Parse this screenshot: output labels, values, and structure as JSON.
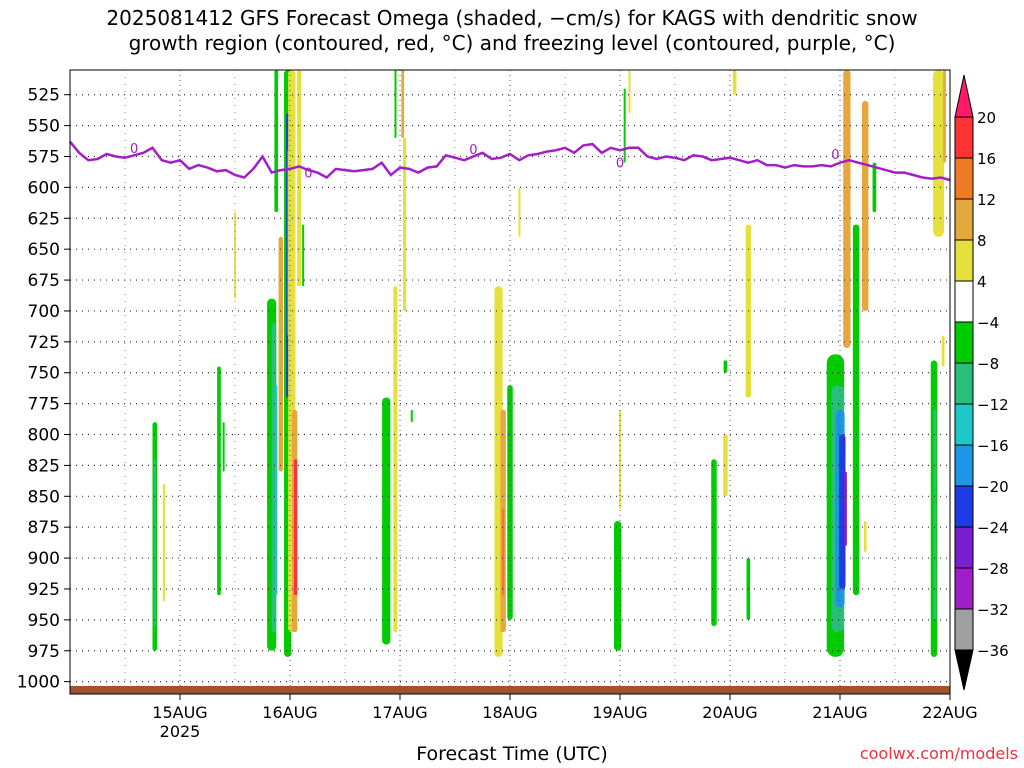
{
  "title_line1": "2025081412 GFS Forecast Omega (shaded, −cm/s) for KAGS with dendritic snow",
  "title_line2": "growth region (contoured, red, °C) and freezing level (contoured, purple, °C)",
  "x_axis_title": "Forecast Time (UTC)",
  "credit": "coolwx.com/models",
  "chart_data": {
    "type": "heatmap",
    "y_axis": {
      "label": "",
      "unit": "hPa",
      "range": [
        1010,
        505
      ],
      "ticks": [
        525,
        550,
        575,
        600,
        625,
        650,
        675,
        700,
        725,
        750,
        775,
        800,
        825,
        850,
        875,
        900,
        925,
        950,
        975,
        1000
      ]
    },
    "x_axis": {
      "range_hours": [
        -12,
        180
      ],
      "ticks": [
        {
          "hour": 12,
          "label": "15AUG",
          "sublabel": "2025"
        },
        {
          "hour": 36,
          "label": "16AUG",
          "sublabel": ""
        },
        {
          "hour": 60,
          "label": "17AUG",
          "sublabel": ""
        },
        {
          "hour": 84,
          "label": "18AUG",
          "sublabel": ""
        },
        {
          "hour": 108,
          "label": "19AUG",
          "sublabel": ""
        },
        {
          "hour": 132,
          "label": "20AUG",
          "sublabel": ""
        },
        {
          "hour": 156,
          "label": "21AUG",
          "sublabel": ""
        },
        {
          "hour": 180,
          "label": "22AUG",
          "sublabel": ""
        }
      ]
    },
    "colorbar": {
      "levels": [
        "20",
        "16",
        "12",
        "8",
        "4",
        "−4",
        "−8",
        "−12",
        "−16",
        "−20",
        "−24",
        "−28",
        "−32",
        "−36"
      ],
      "colors": [
        "#ff1a66",
        "#ff3333",
        "#f07a28",
        "#e6a83c",
        "#e6e03c",
        "#ffffff",
        "#00cc00",
        "#27bf7a",
        "#1ec8c8",
        "#1e96e6",
        "#1e3ce6",
        "#7a1ed2",
        "#a01ec8",
        "#a0a0a0",
        "#000000"
      ]
    },
    "freezing_level_0C": {
      "label": "0",
      "hours": [
        -12,
        -10,
        -8,
        -6,
        -4,
        -2,
        0,
        2,
        4,
        6,
        8,
        10,
        12,
        14,
        16,
        18,
        20,
        22,
        24,
        26,
        28,
        30,
        32,
        34,
        36,
        38,
        40,
        42,
        44,
        46,
        48,
        50,
        52,
        54,
        56,
        58,
        60,
        62,
        64,
        66,
        68,
        70,
        72,
        74,
        76,
        78,
        80,
        82,
        84,
        86,
        88,
        90,
        92,
        94,
        96,
        98,
        100,
        102,
        104,
        106,
        108,
        110,
        112,
        114,
        116,
        118,
        120,
        122,
        124,
        126,
        128,
        130,
        132,
        134,
        136,
        138,
        140,
        142,
        144,
        146,
        148,
        150,
        152,
        154,
        156,
        158,
        160,
        162,
        164,
        166,
        168,
        170,
        172,
        174,
        176,
        178,
        180
      ],
      "pressure": [
        563,
        572,
        578,
        577,
        573,
        575,
        576,
        574,
        572,
        568,
        578,
        580,
        578,
        585,
        582,
        584,
        587,
        586,
        590,
        592,
        585,
        575,
        588,
        586,
        585,
        583,
        586,
        588,
        592,
        585,
        586,
        587,
        586,
        585,
        580,
        590,
        584,
        585,
        588,
        584,
        583,
        574,
        576,
        578,
        575,
        572,
        577,
        576,
        573,
        578,
        574,
        573,
        571,
        570,
        568,
        572,
        566,
        565,
        572,
        568,
        570,
        568,
        568,
        575,
        577,
        575,
        576,
        578,
        574,
        575,
        578,
        577,
        576,
        578,
        580,
        578,
        582,
        582,
        584,
        582,
        583,
        583,
        582,
        583,
        580,
        578,
        580,
        582,
        584,
        586,
        588,
        588,
        590,
        592,
        593,
        592,
        594
      ]
    },
    "omega_features": [
      {
        "hour": 6.5,
        "p_top": 790,
        "p_bot": 975,
        "width_h": 1.0,
        "value": -7
      },
      {
        "hour": 6.5,
        "p_top": 820,
        "p_bot": 955,
        "width_h": 0.4,
        "value": -11
      },
      {
        "hour": 8.5,
        "p_top": 840,
        "p_bot": 935,
        "width_h": 0.5,
        "value": 4
      },
      {
        "hour": 20.5,
        "p_top": 745,
        "p_bot": 930,
        "width_h": 0.8,
        "value": -7
      },
      {
        "hour": 21.5,
        "p_top": 790,
        "p_bot": 830,
        "width_h": 0.4,
        "value": -8
      },
      {
        "hour": 24,
        "p_top": 620,
        "p_bot": 690,
        "width_h": 0.4,
        "value": 4
      },
      {
        "hour": 32,
        "p_top": 690,
        "p_bot": 975,
        "width_h": 2.0,
        "value": -7
      },
      {
        "hour": 32.5,
        "p_top": 710,
        "p_bot": 960,
        "width_h": 1.0,
        "value": -11
      },
      {
        "hour": 33,
        "p_top": 760,
        "p_bot": 930,
        "width_h": 0.5,
        "value": -16
      },
      {
        "hour": 33,
        "p_top": 505,
        "p_bot": 620,
        "width_h": 0.8,
        "value": -7
      },
      {
        "hour": 34,
        "p_top": 640,
        "p_bot": 830,
        "width_h": 1.0,
        "value": 8
      },
      {
        "hour": 35.5,
        "p_top": 505,
        "p_bot": 980,
        "width_h": 1.6,
        "value": -8
      },
      {
        "hour": 35.6,
        "p_top": 540,
        "p_bot": 770,
        "width_h": 0.9,
        "value": -22
      },
      {
        "hour": 35.7,
        "p_top": 570,
        "p_bot": 720,
        "width_h": 0.5,
        "value": -36
      },
      {
        "hour": 36.4,
        "p_top": 505,
        "p_bot": 960,
        "width_h": 1.6,
        "value": 6
      },
      {
        "hour": 37,
        "p_top": 780,
        "p_bot": 960,
        "width_h": 1.2,
        "value": 10
      },
      {
        "hour": 37.2,
        "p_top": 820,
        "p_bot": 930,
        "width_h": 0.7,
        "value": 18
      },
      {
        "hour": 38,
        "p_top": 505,
        "p_bot": 680,
        "width_h": 0.9,
        "value": 5
      },
      {
        "hour": 38.8,
        "p_top": 630,
        "p_bot": 680,
        "width_h": 0.3,
        "value": -7
      },
      {
        "hour": 57,
        "p_top": 770,
        "p_bot": 970,
        "width_h": 1.8,
        "value": -7
      },
      {
        "hour": 59,
        "p_top": 680,
        "p_bot": 960,
        "width_h": 0.9,
        "value": 4
      },
      {
        "hour": 59,
        "p_top": 505,
        "p_bot": 560,
        "width_h": 0.4,
        "value": -7
      },
      {
        "hour": 60.6,
        "p_top": 505,
        "p_bot": 560,
        "width_h": 0.6,
        "value": 10
      },
      {
        "hour": 61,
        "p_top": 560,
        "p_bot": 700,
        "width_h": 0.7,
        "value": 4
      },
      {
        "hour": 62.5,
        "p_top": 780,
        "p_bot": 790,
        "width_h": 0.3,
        "value": -7
      },
      {
        "hour": 81.5,
        "p_top": 680,
        "p_bot": 980,
        "width_h": 1.8,
        "value": 5
      },
      {
        "hour": 82.5,
        "p_top": 780,
        "p_bot": 960,
        "width_h": 1.2,
        "value": 8
      },
      {
        "hour": 82.5,
        "p_top": 860,
        "p_bot": 930,
        "width_h": 0.5,
        "value": 13
      },
      {
        "hour": 84,
        "p_top": 760,
        "p_bot": 950,
        "width_h": 1.2,
        "value": -7
      },
      {
        "hour": 86,
        "p_top": 600,
        "p_bot": 640,
        "width_h": 0.3,
        "value": 4
      },
      {
        "hour": 107.5,
        "p_top": 870,
        "p_bot": 975,
        "width_h": 1.6,
        "value": -7
      },
      {
        "hour": 108,
        "p_top": 780,
        "p_bot": 860,
        "width_h": 0.4,
        "value": 4
      },
      {
        "hour": 109,
        "p_top": 520,
        "p_bot": 580,
        "width_h": 0.4,
        "value": -7
      },
      {
        "hour": 110,
        "p_top": 505,
        "p_bot": 540,
        "width_h": 0.3,
        "value": 4
      },
      {
        "hour": 128.5,
        "p_top": 820,
        "p_bot": 955,
        "width_h": 1.2,
        "value": -7
      },
      {
        "hour": 131,
        "p_top": 800,
        "p_bot": 850,
        "width_h": 1.0,
        "value": 4
      },
      {
        "hour": 131,
        "p_top": 740,
        "p_bot": 750,
        "width_h": 0.8,
        "value": -7
      },
      {
        "hour": 133,
        "p_top": 505,
        "p_bot": 525,
        "width_h": 0.8,
        "value": 4
      },
      {
        "hour": 136,
        "p_top": 630,
        "p_bot": 770,
        "width_h": 1.2,
        "value": 4
      },
      {
        "hour": 136,
        "p_top": 900,
        "p_bot": 950,
        "width_h": 0.8,
        "value": -7
      },
      {
        "hour": 155,
        "p_top": 735,
        "p_bot": 980,
        "width_h": 3.8,
        "value": -7
      },
      {
        "hour": 155.5,
        "p_top": 760,
        "p_bot": 960,
        "width_h": 2.8,
        "value": -12
      },
      {
        "hour": 156,
        "p_top": 780,
        "p_bot": 940,
        "width_h": 2.0,
        "value": -17
      },
      {
        "hour": 156.5,
        "p_top": 800,
        "p_bot": 925,
        "width_h": 1.4,
        "value": -22
      },
      {
        "hour": 157.2,
        "p_top": 830,
        "p_bot": 890,
        "width_h": 0.6,
        "value": -26
      },
      {
        "hour": 157.5,
        "p_top": 505,
        "p_bot": 730,
        "width_h": 1.6,
        "value": 10
      },
      {
        "hour": 159.5,
        "p_top": 630,
        "p_bot": 930,
        "width_h": 1.4,
        "value": -7
      },
      {
        "hour": 161.5,
        "p_top": 530,
        "p_bot": 700,
        "width_h": 1.4,
        "value": 8
      },
      {
        "hour": 161.5,
        "p_top": 870,
        "p_bot": 895,
        "width_h": 0.6,
        "value": 4
      },
      {
        "hour": 163.5,
        "p_top": 580,
        "p_bot": 620,
        "width_h": 0.8,
        "value": -7
      },
      {
        "hour": 176.5,
        "p_top": 740,
        "p_bot": 980,
        "width_h": 1.4,
        "value": -7
      },
      {
        "hour": 176.7,
        "p_top": 780,
        "p_bot": 950,
        "width_h": 0.6,
        "value": -12
      },
      {
        "hour": 177.5,
        "p_top": 505,
        "p_bot": 640,
        "width_h": 2.4,
        "value": 4
      },
      {
        "hour": 178.8,
        "p_top": 505,
        "p_bot": 580,
        "width_h": 0.6,
        "value": 10
      },
      {
        "hour": 178.5,
        "p_top": 720,
        "p_bot": 745,
        "width_h": 0.6,
        "value": 4
      }
    ]
  }
}
